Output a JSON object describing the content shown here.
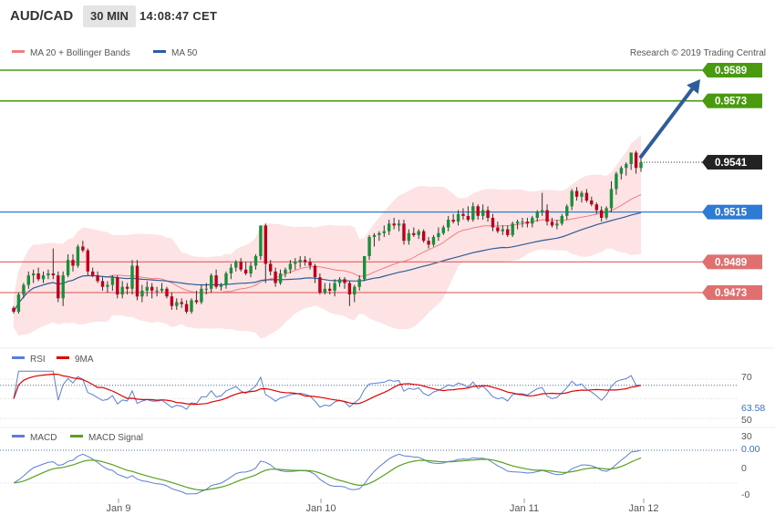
{
  "header": {
    "symbol": "AUD/CAD",
    "timeframe": "30 MIN",
    "time": "14:08:47 CET"
  },
  "price_panel": {
    "legend": [
      {
        "label": "MA 20 + Bollinger Bands",
        "color": "#f08080"
      },
      {
        "label": "MA 50",
        "color": "#2d5d9a"
      }
    ],
    "copyright": "Research © 2019 Trading Central",
    "levels": [
      {
        "value": 0.9589,
        "label": "0.9589",
        "color": "#4a9a10"
      },
      {
        "value": 0.9573,
        "label": "0.9573",
        "color": "#4a9a10"
      },
      {
        "value": 0.9541,
        "label": "0.9541",
        "color": "#222222"
      },
      {
        "value": 0.9515,
        "label": "0.9515",
        "color": "#2e7bd6"
      },
      {
        "value": 0.9489,
        "label": "0.9489",
        "color": "#e07070"
      },
      {
        "value": 0.9473,
        "label": "0.9473",
        "color": "#e07070"
      }
    ]
  },
  "rsi_panel": {
    "legend": [
      {
        "label": "RSI",
        "color": "#5b7fd4"
      },
      {
        "label": "9MA",
        "color": "#e00000"
      }
    ],
    "ticks": [
      "70",
      "50",
      "30"
    ],
    "current_label": "63.58"
  },
  "macd_panel": {
    "legend": [
      {
        "label": "MACD",
        "color": "#5b7fd4"
      },
      {
        "label": "MACD Signal",
        "color": "#5aa020"
      }
    ],
    "ticks": [
      "0",
      "-0"
    ],
    "current_label": "0.00"
  },
  "x_axis": [
    "Jan 9",
    "Jan 10",
    "Jan 11",
    "Jan 12"
  ],
  "chart_data": {
    "type": "candlestick",
    "timeframe": "30 MIN",
    "price_levels": [
      0.9589,
      0.9573,
      0.9541,
      0.9515,
      0.9489,
      0.9473
    ],
    "last_price": 0.9541,
    "forecast_target": 0.9589,
    "ylim": [
      0.9445,
      0.96
    ],
    "candles": [
      [
        0.9465,
        0.9466,
        0.9462,
        0.9463
      ],
      [
        0.9463,
        0.9473,
        0.9462,
        0.9472
      ],
      [
        0.9472,
        0.9478,
        0.947,
        0.9477
      ],
      [
        0.9477,
        0.9484,
        0.9475,
        0.9482
      ],
      [
        0.9482,
        0.9485,
        0.9478,
        0.9483
      ],
      [
        0.9483,
        0.9486,
        0.9479,
        0.948
      ],
      [
        0.948,
        0.9484,
        0.9478,
        0.9482
      ],
      [
        0.9482,
        0.9485,
        0.948,
        0.9483
      ],
      [
        0.9483,
        0.9496,
        0.948,
        0.9482
      ],
      [
        0.9482,
        0.9484,
        0.9468,
        0.947
      ],
      [
        0.947,
        0.9484,
        0.9466,
        0.9482
      ],
      [
        0.9482,
        0.9493,
        0.9481,
        0.949
      ],
      [
        0.949,
        0.9493,
        0.9484,
        0.9487
      ],
      [
        0.9487,
        0.9498,
        0.9486,
        0.9497
      ],
      [
        0.9497,
        0.95,
        0.9494,
        0.9495
      ],
      [
        0.9495,
        0.9496,
        0.9482,
        0.9484
      ],
      [
        0.9484,
        0.9486,
        0.9481,
        0.9482
      ],
      [
        0.9482,
        0.9484,
        0.9478,
        0.9479
      ],
      [
        0.9479,
        0.9481,
        0.9474,
        0.9476
      ],
      [
        0.9476,
        0.9479,
        0.9473,
        0.9477
      ],
      [
        0.9477,
        0.9482,
        0.9474,
        0.9481
      ],
      [
        0.9481,
        0.9482,
        0.947,
        0.9472
      ],
      [
        0.9472,
        0.9479,
        0.947,
        0.9476
      ],
      [
        0.9476,
        0.9478,
        0.9472,
        0.9475
      ],
      [
        0.9475,
        0.949,
        0.9472,
        0.9487
      ],
      [
        0.9487,
        0.949,
        0.9469,
        0.9471
      ],
      [
        0.9471,
        0.9477,
        0.9468,
        0.9474
      ],
      [
        0.9474,
        0.9479,
        0.9471,
        0.9476
      ],
      [
        0.9476,
        0.9478,
        0.947,
        0.9474
      ],
      [
        0.9474,
        0.9476,
        0.9471,
        0.9474
      ],
      [
        0.9474,
        0.9478,
        0.9473,
        0.9475
      ],
      [
        0.9475,
        0.9476,
        0.947,
        0.9471
      ],
      [
        0.9471,
        0.9473,
        0.9464,
        0.9466
      ],
      [
        0.9466,
        0.947,
        0.9464,
        0.9468
      ],
      [
        0.9468,
        0.947,
        0.9465,
        0.9467
      ],
      [
        0.9467,
        0.9469,
        0.9462,
        0.9463
      ],
      [
        0.9463,
        0.947,
        0.9462,
        0.9469
      ],
      [
        0.9469,
        0.9474,
        0.9467,
        0.9468
      ],
      [
        0.9468,
        0.9477,
        0.9467,
        0.9475
      ],
      [
        0.9475,
        0.9478,
        0.9472,
        0.9475
      ],
      [
        0.9475,
        0.9483,
        0.9473,
        0.9482
      ],
      [
        0.9482,
        0.9485,
        0.9475,
        0.9476
      ],
      [
        0.9476,
        0.9478,
        0.9474,
        0.9477
      ],
      [
        0.9477,
        0.9484,
        0.9475,
        0.9483
      ],
      [
        0.9483,
        0.9488,
        0.948,
        0.9486
      ],
      [
        0.9486,
        0.949,
        0.9484,
        0.9489
      ],
      [
        0.9489,
        0.9491,
        0.9484,
        0.9485
      ],
      [
        0.9485,
        0.9489,
        0.9482,
        0.9483
      ],
      [
        0.9483,
        0.9489,
        0.9481,
        0.9487
      ],
      [
        0.9487,
        0.9493,
        0.9485,
        0.9492
      ],
      [
        0.9492,
        0.9508,
        0.949,
        0.9508
      ],
      [
        0.9508,
        0.9509,
        0.9478,
        0.9488
      ],
      [
        0.9488,
        0.949,
        0.9482,
        0.9484
      ],
      [
        0.9484,
        0.9486,
        0.9476,
        0.9478
      ],
      [
        0.9478,
        0.9485,
        0.9477,
        0.9483
      ],
      [
        0.9483,
        0.9486,
        0.9481,
        0.9485
      ],
      [
        0.9485,
        0.949,
        0.9483,
        0.9488
      ],
      [
        0.9488,
        0.9491,
        0.9485,
        0.9489
      ],
      [
        0.9489,
        0.9492,
        0.9486,
        0.949
      ],
      [
        0.949,
        0.9492,
        0.9487,
        0.9489
      ],
      [
        0.9489,
        0.9491,
        0.9485,
        0.9487
      ],
      [
        0.9487,
        0.9488,
        0.9478,
        0.9481
      ],
      [
        0.9481,
        0.9483,
        0.9472,
        0.9473
      ],
      [
        0.9473,
        0.9478,
        0.9472,
        0.9475
      ],
      [
        0.9475,
        0.9478,
        0.9472,
        0.9474
      ],
      [
        0.9474,
        0.948,
        0.9471,
        0.9478
      ],
      [
        0.9478,
        0.9481,
        0.9476,
        0.948
      ],
      [
        0.948,
        0.9481,
        0.9475,
        0.9478
      ],
      [
        0.9478,
        0.9479,
        0.9466,
        0.9472
      ],
      [
        0.9472,
        0.9477,
        0.9468,
        0.9476
      ],
      [
        0.9476,
        0.9482,
        0.9474,
        0.948
      ],
      [
        0.948,
        0.9492,
        0.9479,
        0.9492
      ],
      [
        0.9492,
        0.9503,
        0.949,
        0.9502
      ],
      [
        0.9502,
        0.9504,
        0.9497,
        0.9503
      ],
      [
        0.9503,
        0.9505,
        0.95,
        0.9504
      ],
      [
        0.9504,
        0.9508,
        0.9502,
        0.9505
      ],
      [
        0.9505,
        0.9511,
        0.9503,
        0.9509
      ],
      [
        0.9509,
        0.9512,
        0.9506,
        0.9508
      ],
      [
        0.9508,
        0.9511,
        0.9505,
        0.9509
      ],
      [
        0.9509,
        0.9511,
        0.9498,
        0.95
      ],
      [
        0.95,
        0.9506,
        0.9498,
        0.9504
      ],
      [
        0.9504,
        0.9507,
        0.9502,
        0.9503
      ],
      [
        0.9503,
        0.9506,
        0.9501,
        0.9505
      ],
      [
        0.9505,
        0.9506,
        0.9499,
        0.95
      ],
      [
        0.95,
        0.9502,
        0.9496,
        0.9498
      ],
      [
        0.9498,
        0.9503,
        0.9497,
        0.9502
      ],
      [
        0.9502,
        0.9507,
        0.95,
        0.9504
      ],
      [
        0.9504,
        0.9508,
        0.9503,
        0.9507
      ],
      [
        0.9507,
        0.9513,
        0.9505,
        0.9511
      ],
      [
        0.9511,
        0.9514,
        0.9509,
        0.951
      ],
      [
        0.951,
        0.9516,
        0.9508,
        0.9514
      ],
      [
        0.9514,
        0.9517,
        0.9511,
        0.9513
      ],
      [
        0.9513,
        0.9518,
        0.951,
        0.9511
      ],
      [
        0.9511,
        0.952,
        0.951,
        0.9518
      ],
      [
        0.9518,
        0.9519,
        0.9511,
        0.9513
      ],
      [
        0.9513,
        0.9519,
        0.9511,
        0.9516
      ],
      [
        0.9516,
        0.9518,
        0.951,
        0.9512
      ],
      [
        0.9512,
        0.9514,
        0.9505,
        0.9507
      ],
      [
        0.9507,
        0.951,
        0.9504,
        0.9505
      ],
      [
        0.9505,
        0.9508,
        0.9503,
        0.9506
      ],
      [
        0.9506,
        0.9508,
        0.9502,
        0.9503
      ],
      [
        0.9503,
        0.951,
        0.9502,
        0.9509
      ],
      [
        0.9509,
        0.9511,
        0.9506,
        0.951
      ],
      [
        0.951,
        0.9512,
        0.9507,
        0.951
      ],
      [
        0.951,
        0.9512,
        0.9507,
        0.9509
      ],
      [
        0.9509,
        0.9513,
        0.9507,
        0.9512
      ],
      [
        0.9512,
        0.9516,
        0.951,
        0.9515
      ],
      [
        0.9515,
        0.9525,
        0.9513,
        0.9516
      ],
      [
        0.9516,
        0.9519,
        0.9508,
        0.951
      ],
      [
        0.951,
        0.9512,
        0.9507,
        0.9508
      ],
      [
        0.9508,
        0.9511,
        0.9506,
        0.9509
      ],
      [
        0.9509,
        0.9514,
        0.9508,
        0.9513
      ],
      [
        0.9513,
        0.9519,
        0.9511,
        0.9518
      ],
      [
        0.9518,
        0.9527,
        0.9516,
        0.9526
      ],
      [
        0.9526,
        0.9528,
        0.9521,
        0.9523
      ],
      [
        0.9523,
        0.9526,
        0.952,
        0.9525
      ],
      [
        0.9525,
        0.9527,
        0.952,
        0.9521
      ],
      [
        0.9521,
        0.9523,
        0.9518,
        0.9519
      ],
      [
        0.9519,
        0.952,
        0.9514,
        0.9516
      ],
      [
        0.9516,
        0.9518,
        0.951,
        0.9512
      ],
      [
        0.9512,
        0.9518,
        0.9511,
        0.9517
      ],
      [
        0.9517,
        0.9531,
        0.9515,
        0.9527
      ],
      [
        0.9527,
        0.9536,
        0.9524,
        0.9535
      ],
      [
        0.9535,
        0.9539,
        0.9532,
        0.9538
      ],
      [
        0.9538,
        0.9541,
        0.9534,
        0.954
      ],
      [
        0.954,
        0.9546,
        0.9537,
        0.9546
      ],
      [
        0.9546,
        0.9547,
        0.9535,
        0.9538
      ],
      [
        0.9538,
        0.9543,
        0.9536,
        0.9541
      ]
    ],
    "rsi": {
      "ylim": [
        20,
        80
      ],
      "ticks": [
        70,
        50,
        30
      ],
      "current": 63.58
    },
    "macd": {
      "current": 0.0
    }
  }
}
